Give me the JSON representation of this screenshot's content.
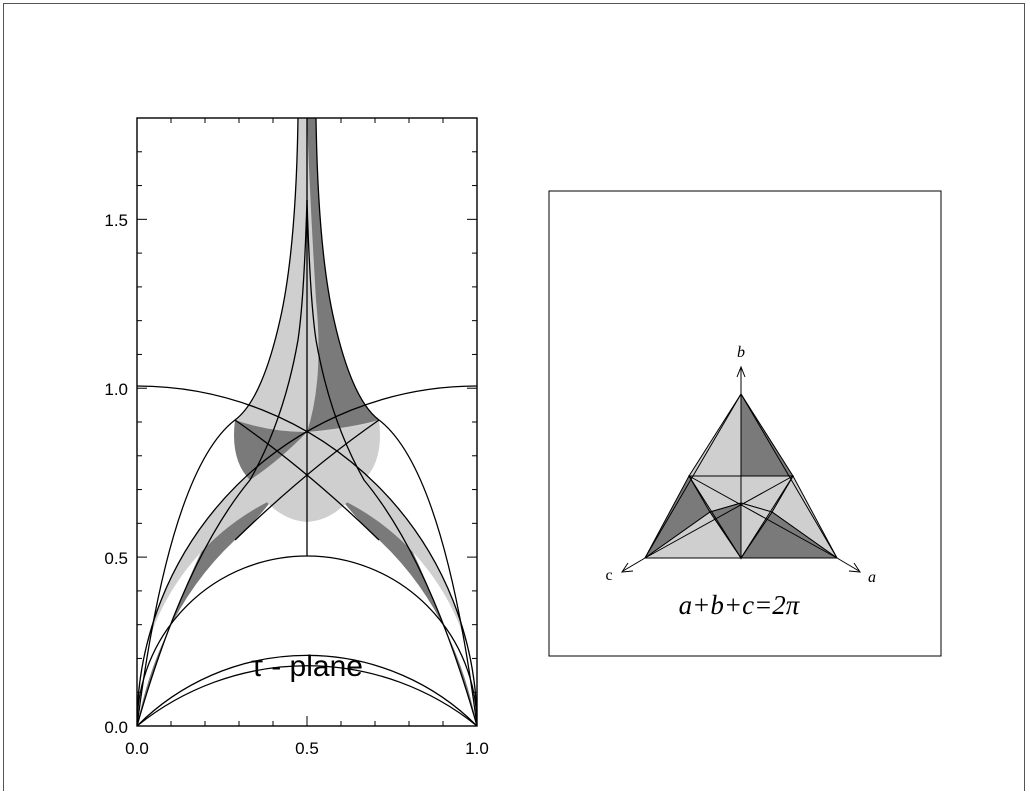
{
  "left_panel": {
    "x_ticks": [
      "0.0",
      "0.5",
      "1.0"
    ],
    "y_ticks": [
      "0.0",
      "0.5",
      "1.0",
      "1.5"
    ],
    "x_range": [
      0,
      1
    ],
    "y_range": [
      0,
      1.8
    ],
    "plane_label": "τ - plane"
  },
  "right_panel": {
    "axis_labels": {
      "a": "a",
      "b": "b",
      "c": "c"
    },
    "equation": "a+b+c=2π"
  },
  "colors": {
    "dark": "#7a7a7a",
    "light": "#cfcfcf",
    "line": "#000000"
  }
}
